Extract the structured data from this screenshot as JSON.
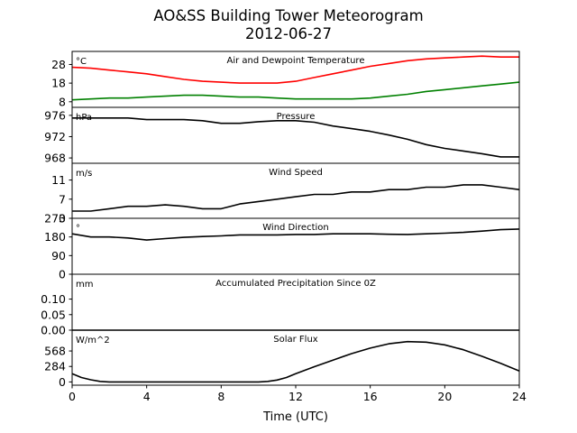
{
  "figure": {
    "title": "AO&SS Building Tower Meteorogram",
    "subtitle": "2012-06-27",
    "xlabel": "Time (UTC)",
    "x_ticks": [
      "0",
      "4",
      "8",
      "12",
      "16",
      "20",
      "24"
    ]
  },
  "colors": {
    "temperature": "#ff0000",
    "dewpoint": "#008000",
    "default": "#000000"
  },
  "chart_data": [
    {
      "type": "line",
      "title": "Air and Dewpoint Temperature",
      "unit_label": "°C",
      "ylim": [
        5,
        35
      ],
      "yticks": [
        8,
        18,
        28
      ],
      "xlim": [
        0,
        24
      ],
      "series": [
        {
          "color": "#ff0000",
          "x": [
            0,
            1,
            2,
            3,
            4,
            5,
            6,
            7,
            8,
            9,
            10,
            11,
            12,
            13,
            14,
            15,
            16,
            17,
            18,
            19,
            20,
            21,
            22,
            23,
            24
          ],
          "y": [
            26.5,
            26,
            25,
            24,
            23,
            21.5,
            20,
            19,
            18.5,
            18,
            18,
            18,
            19,
            21,
            23,
            25,
            27,
            28.5,
            30,
            31,
            31.5,
            32,
            32.5,
            32,
            32
          ]
        },
        {
          "color": "#008000",
          "x": [
            0,
            1,
            2,
            3,
            4,
            5,
            6,
            7,
            8,
            9,
            10,
            11,
            12,
            13,
            14,
            15,
            16,
            17,
            18,
            19,
            20,
            21,
            22,
            23,
            24
          ],
          "y": [
            9,
            9.5,
            10,
            10,
            10.5,
            11,
            11.5,
            11.5,
            11,
            10.5,
            10.5,
            10,
            9.5,
            9.5,
            9.5,
            9.5,
            10,
            11,
            12,
            13.5,
            14.5,
            15.5,
            16.5,
            17.5,
            18.5
          ]
        }
      ]
    },
    {
      "type": "line",
      "title": "Pressure",
      "unit_label": "hPa",
      "ylim": [
        967,
        977.5
      ],
      "yticks": [
        968,
        972,
        976
      ],
      "xlim": [
        0,
        24
      ],
      "series": [
        {
          "color": "#000000",
          "x": [
            0,
            1,
            2,
            3,
            4,
            5,
            6,
            7,
            8,
            9,
            10,
            11,
            12,
            13,
            14,
            15,
            16,
            17,
            18,
            19,
            20,
            21,
            22,
            23,
            24
          ],
          "y": [
            975.5,
            975.5,
            975.5,
            975.5,
            975.2,
            975.2,
            975.2,
            975,
            974.5,
            974.5,
            974.8,
            975,
            975,
            974.7,
            974,
            973.5,
            973,
            972.3,
            971.5,
            970.5,
            969.8,
            969.3,
            968.8,
            968.2,
            968.2
          ]
        }
      ]
    },
    {
      "type": "line",
      "title": "Wind Speed",
      "unit_label": "m/s",
      "ylim": [
        3,
        14.5
      ],
      "yticks": [
        3,
        7,
        11
      ],
      "xlim": [
        0,
        24
      ],
      "series": [
        {
          "color": "#000000",
          "x": [
            0,
            1,
            2,
            3,
            4,
            5,
            6,
            7,
            8,
            9,
            10,
            11,
            12,
            13,
            14,
            15,
            16,
            17,
            18,
            19,
            20,
            21,
            22,
            23,
            24
          ],
          "y": [
            4.5,
            4.5,
            5,
            5.5,
            5.5,
            5.8,
            5.5,
            5,
            5,
            6,
            6.5,
            7,
            7.5,
            8,
            8,
            8.5,
            8.5,
            9,
            9,
            9.5,
            9.5,
            10,
            10,
            9.5,
            9
          ]
        }
      ]
    },
    {
      "type": "line",
      "title": "Wind Direction",
      "unit_label": "°",
      "ylim": [
        0,
        270
      ],
      "yticks": [
        0,
        90,
        180,
        270
      ],
      "xlim": [
        0,
        24
      ],
      "series": [
        {
          "color": "#000000",
          "x": [
            0,
            1,
            2,
            3,
            4,
            5,
            6,
            7,
            8,
            9,
            10,
            11,
            12,
            13,
            14,
            15,
            16,
            17,
            18,
            19,
            20,
            21,
            22,
            23,
            24
          ],
          "y": [
            195,
            180,
            180,
            175,
            165,
            172,
            178,
            182,
            185,
            190,
            190,
            190,
            192,
            192,
            195,
            195,
            195,
            193,
            192,
            195,
            198,
            202,
            208,
            215,
            218
          ]
        }
      ]
    },
    {
      "type": "line",
      "title": "Accumulated Precipitation Since 0Z",
      "unit_label": "mm",
      "ylim": [
        0,
        0.18
      ],
      "yticks": [
        0.0,
        0.05,
        0.1
      ],
      "xlim": [
        0,
        24
      ],
      "series": [
        {
          "color": "#000000",
          "x": [
            0,
            24
          ],
          "y": [
            0,
            0
          ]
        }
      ]
    },
    {
      "type": "line",
      "title": "Solar Flux",
      "unit_label": "W/m^2",
      "ylim": [
        -60,
        950
      ],
      "yticks": [
        0,
        284,
        568
      ],
      "xlim": [
        0,
        24
      ],
      "series": [
        {
          "color": "#000000",
          "x": [
            0,
            0.5,
            1,
            1.5,
            2,
            3,
            4,
            5,
            6,
            7,
            8,
            9,
            10,
            10.5,
            11,
            11.5,
            12,
            13,
            14,
            15,
            16,
            17,
            18,
            19,
            20,
            21,
            22,
            23,
            24
          ],
          "y": [
            150,
            80,
            40,
            10,
            0,
            0,
            0,
            0,
            0,
            0,
            0,
            0,
            0,
            10,
            35,
            80,
            150,
            280,
            400,
            520,
            620,
            700,
            740,
            730,
            680,
            590,
            470,
            340,
            200
          ]
        }
      ]
    }
  ]
}
